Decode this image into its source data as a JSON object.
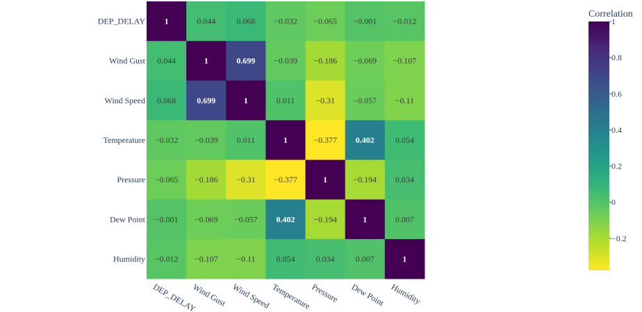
{
  "chart_data": {
    "type": "heatmap",
    "title": "",
    "variables": [
      "DEP_DELAY",
      "Wind Gust",
      "Wind Speed",
      "Temperature",
      "Pressure",
      "Dew Point",
      "Humidity"
    ],
    "matrix": [
      [
        1,
        0.044,
        0.068,
        -0.032,
        -0.065,
        -0.001,
        -0.012
      ],
      [
        0.044,
        1,
        0.699,
        -0.039,
        -0.186,
        -0.069,
        -0.107
      ],
      [
        0.068,
        0.699,
        1,
        0.011,
        -0.31,
        -0.057,
        -0.11
      ],
      [
        -0.032,
        -0.039,
        0.011,
        1,
        -0.377,
        0.402,
        0.054
      ],
      [
        -0.065,
        -0.186,
        -0.31,
        -0.377,
        1,
        -0.194,
        0.034
      ],
      [
        -0.001,
        -0.069,
        -0.057,
        0.402,
        -0.194,
        1,
        0.007
      ],
      [
        -0.012,
        -0.107,
        -0.11,
        0.054,
        0.034,
        0.007,
        1
      ]
    ],
    "colorbar": {
      "title": "Correlation",
      "range": [
        -0.377,
        1
      ],
      "ticks": [
        1,
        0.8,
        0.6,
        0.4,
        0.2,
        0,
        -0.2
      ],
      "tick_labels": [
        "1",
        "0.8",
        "0.6",
        "0.4",
        "0.2",
        "0",
        "−0.2"
      ],
      "colorscale": [
        "#fde725",
        "#b5de2b",
        "#6ece58",
        "#35b779",
        "#1f9e89",
        "#26828e",
        "#31688e",
        "#3e4989",
        "#482878",
        "#440154"
      ]
    }
  }
}
